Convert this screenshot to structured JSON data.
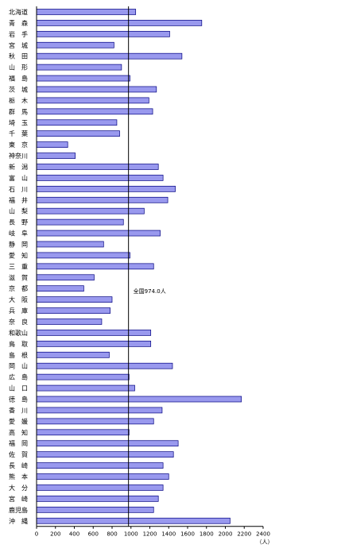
{
  "chart_data": {
    "type": "bar",
    "orientation": "horizontal",
    "title": "",
    "xlabel": "",
    "ylabel": "",
    "unit_label": "（人）",
    "xlim": [
      0,
      2400
    ],
    "x_ticks": [
      0,
      200,
      400,
      600,
      800,
      1000,
      1200,
      1400,
      1600,
      1800,
      2000,
      2200,
      2400
    ],
    "grid": false,
    "reference_line": {
      "value": 974.0,
      "label": "全国974.0人"
    },
    "bar_color": "#9999ee",
    "bar_edge_color": "#000080",
    "categories": [
      "北海道",
      "青森",
      "岩手",
      "宮城",
      "秋田",
      "山形",
      "福島",
      "茨城",
      "栃木",
      "群馬",
      "埼玉",
      "千葉",
      "東京",
      "神奈川",
      "新潟",
      "富山",
      "石川",
      "福井",
      "山梨",
      "長野",
      "岐阜",
      "静岡",
      "愛知",
      "三重",
      "滋賀",
      "京都",
      "大阪",
      "兵庫",
      "奈良",
      "和歌山",
      "鳥取",
      "島根",
      "岡山",
      "広島",
      "山口",
      "徳島",
      "香川",
      "愛媛",
      "高知",
      "福岡",
      "佐賀",
      "長崎",
      "熊本",
      "大分",
      "宮崎",
      "鹿児島",
      "沖縄"
    ],
    "category_labels": [
      "北海道",
      "青　森",
      "岩　手",
      "宮　城",
      "秋　田",
      "山　形",
      "福　島",
      "茨　城",
      "栃　木",
      "群　馬",
      "埼　玉",
      "千　葉",
      "東　京",
      "神奈川",
      "新　潟",
      "富　山",
      "石　川",
      "福　井",
      "山　梨",
      "長　野",
      "岐　阜",
      "静　岡",
      "愛　知",
      "三　重",
      "滋　賀",
      "京　都",
      "大　阪",
      "兵　庫",
      "奈　良",
      "和歌山",
      "鳥　取",
      "島　根",
      "岡　山",
      "広　島",
      "山　口",
      "徳　島",
      "香　川",
      "愛　媛",
      "高　知",
      "福　岡",
      "佐　賀",
      "長　崎",
      "熊　本",
      "大　分",
      "宮　崎",
      "鹿児島",
      "沖　縄"
    ],
    "values": [
      1050,
      1750,
      1410,
      820,
      1540,
      900,
      990,
      1270,
      1190,
      1230,
      850,
      880,
      330,
      410,
      1290,
      1340,
      1470,
      1390,
      1140,
      920,
      1310,
      710,
      990,
      1240,
      610,
      500,
      800,
      780,
      690,
      1210,
      1210,
      770,
      1440,
      980,
      1040,
      2170,
      1330,
      1240,
      980,
      1500,
      1450,
      1340,
      1400,
      1340,
      1290,
      1240,
      2050
    ]
  }
}
